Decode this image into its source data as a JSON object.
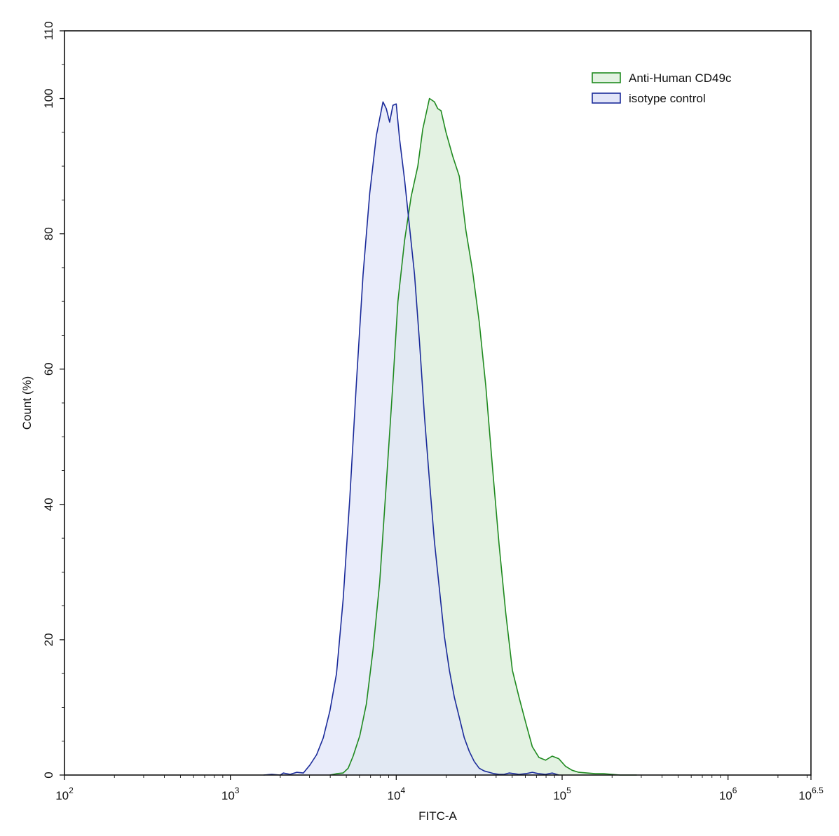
{
  "chart_data": {
    "type": "area",
    "title": "",
    "xlabel": "FITC-A",
    "ylabel": "Count  (%)",
    "xscale": "log10",
    "xlim": [
      100,
      3162277.66
    ],
    "ylim": [
      0,
      110
    ],
    "xticks": [
      {
        "value": 100,
        "base": "10",
        "exp": "2"
      },
      {
        "value": 1000,
        "base": "10",
        "exp": "3"
      },
      {
        "value": 10000,
        "base": "10",
        "exp": "4"
      },
      {
        "value": 100000,
        "base": "10",
        "exp": "5"
      },
      {
        "value": 1000000,
        "base": "10",
        "exp": "6"
      },
      {
        "value": 3162277.66,
        "base": "10",
        "exp": "6.5"
      }
    ],
    "yticks": [
      0,
      20,
      40,
      60,
      80,
      100,
      110
    ],
    "legend_position": "top-right",
    "series": [
      {
        "name": "Anti-Human CD49c",
        "line_color": "#1f8a1f",
        "fill_color": "#e3f2e2",
        "x": [
          3981,
          4365,
          4786,
          5129,
          5495,
          6026,
          6607,
          7244,
          7943,
          8710,
          9550,
          10233,
          11220,
          12303,
          13490,
          14454,
          15849,
          16982,
          17783,
          18620,
          19953,
          21878,
          23988,
          26303,
          28840,
          31623,
          34674,
          38019,
          41687,
          45709,
          50119,
          54954,
          60256,
          66069,
          72444,
          79433,
          87096,
          95499,
          104713,
          114815,
          125893,
          141254,
          158489,
          177828,
          199526,
          223872,
          251189,
          281838
        ],
        "y": [
          0,
          0.2,
          0.3,
          1.0,
          2.8,
          5.8,
          10.5,
          18.5,
          28.5,
          43.0,
          58.0,
          70.0,
          79.0,
          85.5,
          90.0,
          95.5,
          100.0,
          99.5,
          98.5,
          98.2,
          95.0,
          91.5,
          88.5,
          80.5,
          74.5,
          67.0,
          57.5,
          45.5,
          34.0,
          24.0,
          15.5,
          11.5,
          7.8,
          4.2,
          2.6,
          2.2,
          2.8,
          2.4,
          1.3,
          0.7,
          0.4,
          0.3,
          0.2,
          0.2,
          0.1,
          0,
          0,
          0
        ]
      },
      {
        "name": "isotype control",
        "line_color": "#1a2a9a",
        "fill_color": "#e2e5f8",
        "x": [
          1585,
          1778,
          1995,
          2089,
          2291,
          2512,
          2754,
          3020,
          3311,
          3631,
          3981,
          4365,
          4786,
          5248,
          5754,
          6310,
          6918,
          7586,
          8318,
          8710,
          9120,
          9550,
          10000,
          10471,
          11220,
          12023,
          12882,
          13804,
          14791,
          15849,
          16982,
          18197,
          19498,
          20893,
          22387,
          23988,
          25704,
          27542,
          29512,
          31623,
          33884,
          36308,
          38905,
          41687,
          44668,
          47863,
          51286,
          54954,
          60256,
          66069,
          72444,
          79433,
          87096,
          95499
        ],
        "y": [
          0,
          0.1,
          0,
          0.3,
          0.1,
          0.4,
          0.3,
          1.5,
          3.0,
          5.5,
          9.5,
          15.0,
          26.0,
          41.0,
          58.0,
          74.0,
          86.0,
          94.5,
          99.5,
          98.5,
          96.5,
          99.0,
          99.2,
          94.0,
          88.0,
          81.0,
          74.0,
          64.0,
          53.0,
          43.5,
          34.5,
          27.5,
          20.5,
          15.5,
          11.5,
          8.5,
          5.5,
          3.5,
          2.0,
          1.0,
          0.6,
          0.4,
          0.2,
          0.1,
          0.1,
          0.3,
          0.2,
          0.1,
          0.2,
          0.4,
          0.2,
          0.1,
          0.3,
          0
        ]
      }
    ]
  }
}
